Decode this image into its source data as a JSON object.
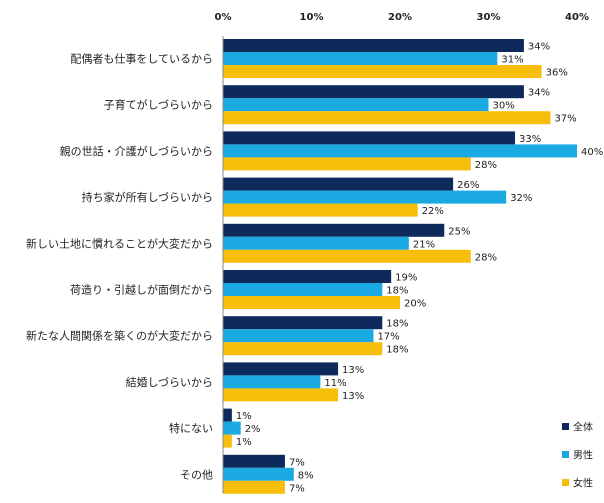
{
  "chart_data": {
    "type": "bar",
    "orientation": "horizontal",
    "categories": [
      "配偶者も仕事をしているから",
      "子育てがしづらいから",
      "親の世話・介護がしづらいから",
      "持ち家が所有しづらいから",
      "新しい土地に慣れることが大変だから",
      "荷造り・引越しが面倒だから",
      "新たな人間関係を築くのが大変だから",
      "結婚しづらいから",
      "特にない",
      "その他"
    ],
    "series": [
      {
        "name": "全体",
        "color": "#0e2a5c",
        "values": [
          34,
          34,
          33,
          26,
          25,
          19,
          18,
          13,
          1,
          7
        ]
      },
      {
        "name": "男性",
        "color": "#1aa9e0",
        "values": [
          31,
          30,
          40,
          32,
          21,
          18,
          17,
          11,
          2,
          8
        ]
      },
      {
        "name": "女性",
        "color": "#f7bf0c",
        "values": [
          36,
          37,
          28,
          22,
          28,
          20,
          18,
          13,
          1,
          7
        ]
      }
    ],
    "value_suffix": "%",
    "xlim": [
      0,
      40
    ],
    "xticks": [
      0,
      10,
      20,
      30,
      40
    ],
    "tick_labels": [
      "0%",
      "10%",
      "20%",
      "30%",
      "40%"
    ],
    "grid": false,
    "legend_position": "bottom-right"
  }
}
